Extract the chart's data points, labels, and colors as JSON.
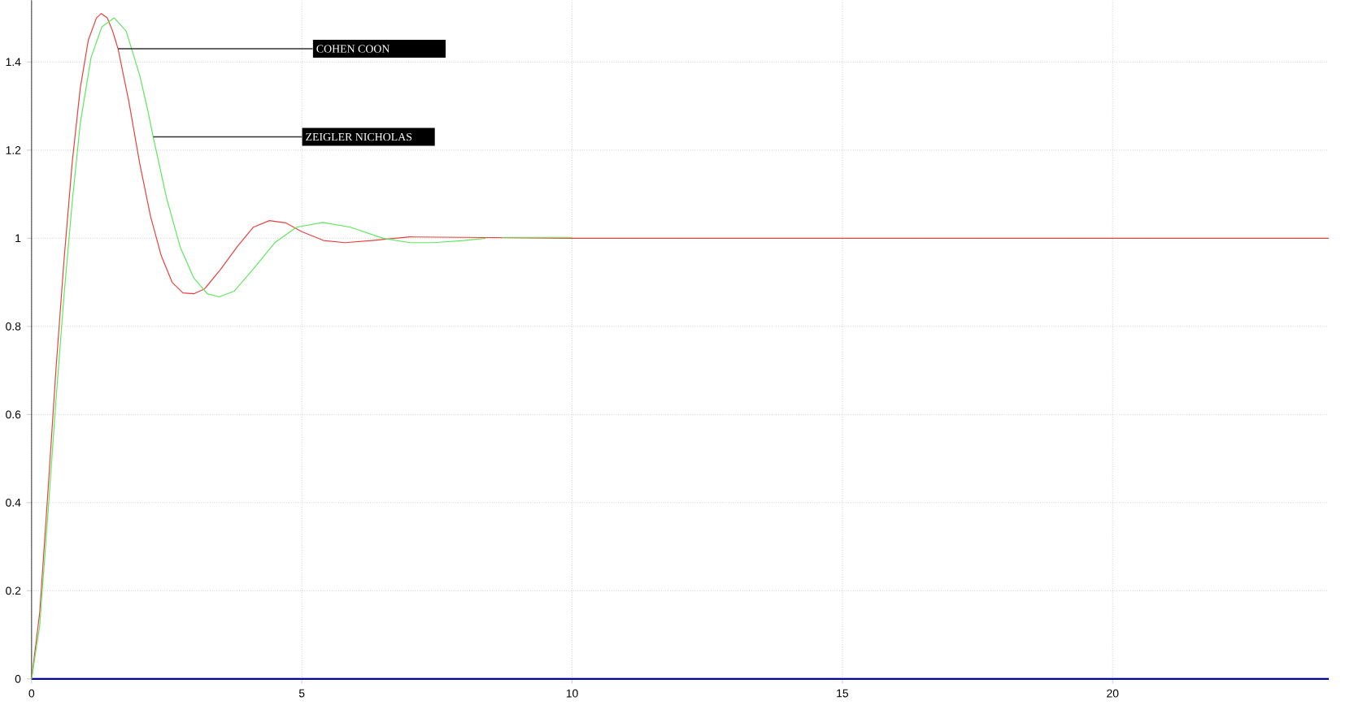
{
  "chart_data": {
    "type": "line",
    "xlim": [
      0,
      24
    ],
    "xticks": [
      0,
      5,
      10,
      15,
      20
    ],
    "ylim": [
      0,
      1.54
    ],
    "yticks": [
      0,
      0.2,
      0.4,
      0.6,
      0.8,
      1,
      1.2,
      1.4
    ],
    "annotations": [
      {
        "text": "COHEN COON",
        "x": 1.6,
        "y": 1.43
      },
      {
        "text": "ZEIGLER NICHOLAS",
        "x": 2.25,
        "y": 1.23
      }
    ],
    "grid": true,
    "line_style": "solid",
    "marker": "none",
    "series": [
      {
        "color": "#e8413c",
        "x": [
          0,
          0.15,
          0.3,
          0.45,
          0.6,
          0.75,
          0.9,
          1.05,
          1.2,
          1.29,
          1.4,
          1.5,
          1.55,
          1.6,
          1.8,
          2.0,
          2.2,
          2.4,
          2.6,
          2.8,
          3.0,
          3.2,
          3.5,
          3.8,
          4.1,
          4.4,
          4.7,
          5.0,
          5.4,
          5.8,
          6.3,
          7.0,
          8,
          10,
          24
        ],
        "values": [
          0,
          0.15,
          0.42,
          0.7,
          0.95,
          1.17,
          1.34,
          1.45,
          1.5,
          1.51,
          1.5,
          1.47,
          1.45,
          1.43,
          1.31,
          1.17,
          1.05,
          0.96,
          0.9,
          0.876,
          0.874,
          0.885,
          0.93,
          0.98,
          1.025,
          1.04,
          1.035,
          1.015,
          0.995,
          0.99,
          0.995,
          1.003,
          1.002,
          1,
          1
        ]
      },
      {
        "color": "#5ee85e",
        "x": [
          0,
          0.15,
          0.3,
          0.45,
          0.6,
          0.75,
          0.9,
          1.1,
          1.3,
          1.53,
          1.75,
          2.0,
          2.15,
          2.25,
          2.5,
          2.75,
          3.0,
          3.25,
          3.47,
          3.75,
          4.1,
          4.5,
          4.9,
          5.39,
          5.9,
          6.5,
          7.0,
          7.43,
          8.0,
          8.4,
          8.55,
          8.7,
          10
        ],
        "values": [
          0,
          0.12,
          0.37,
          0.63,
          0.87,
          1.08,
          1.26,
          1.41,
          1.48,
          1.5,
          1.47,
          1.37,
          1.29,
          1.23,
          1.09,
          0.98,
          0.91,
          0.874,
          0.867,
          0.88,
          0.93,
          0.99,
          1.025,
          1.036,
          1.025,
          1.0,
          0.99,
          0.99,
          0.995,
          1.0,
          null,
          1.002,
          1.002
        ]
      }
    ]
  }
}
